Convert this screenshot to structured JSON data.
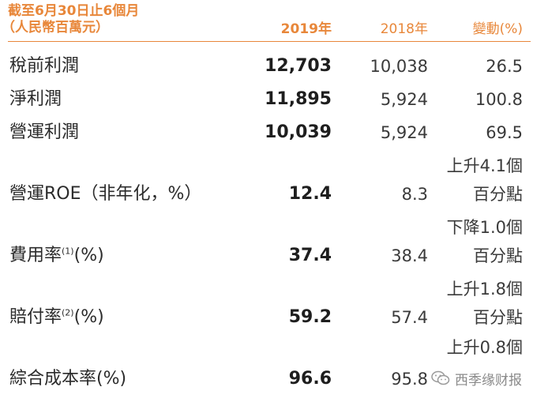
{
  "header": {
    "line1": "截至6月30日止6個月",
    "line2": "（人民幣百萬元）",
    "col_2019": "2019年",
    "col_2018": "2018年",
    "col_change": "變動(%)"
  },
  "rows": [
    {
      "label": "稅前利潤",
      "v2019": "12,703",
      "v2018": "10,038",
      "change": "26.5"
    },
    {
      "label": "淨利潤",
      "v2019": "11,895",
      "v2018": "5,924",
      "change": "100.8"
    },
    {
      "label": "營運利潤",
      "v2019": "10,039",
      "v2018": "5,924",
      "change": "69.5"
    },
    {
      "label": "營運ROE（非年化，%）",
      "v2019": "12.4",
      "v2018": "8.3",
      "change_line1": "上升4.1個",
      "change_line2": "百分點"
    },
    {
      "label": "費用率",
      "note": "(1)",
      "label_suffix": "(%)",
      "v2019": "37.4",
      "v2018": "38.4",
      "change_line1": "下降1.0個",
      "change_line2": "百分點"
    },
    {
      "label": "賠付率",
      "note": "(2)",
      "label_suffix": "(%)",
      "v2019": "59.2",
      "v2018": "57.4",
      "change_line1": "上升1.8個",
      "change_line2": "百分點"
    },
    {
      "label": "綜合成本率(%)",
      "v2019": "96.6",
      "v2018": "95.8",
      "change_line1": "上升0.8個"
    }
  ],
  "watermark": {
    "icon": "wechat-icon",
    "text": "西季缘财报"
  },
  "colors": {
    "accent": "#e8873a",
    "text": "#2b2b2b"
  }
}
